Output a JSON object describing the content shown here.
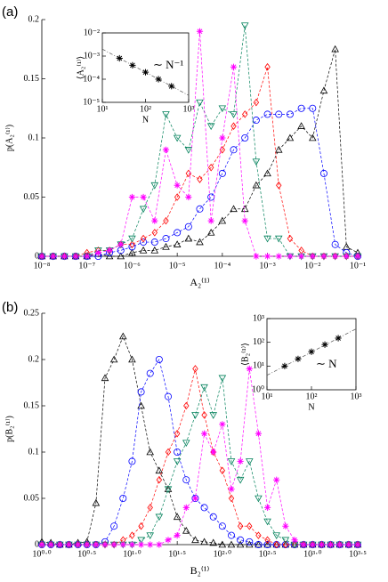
{
  "chart_data": [
    {
      "type": "line",
      "label": "(a)",
      "xlabel": "A₂⁽¹⁾",
      "ylabel": "p(A₂⁽¹⁾)",
      "xscale": "log",
      "xlim": [
        1e-08,
        0.1
      ],
      "ylim": [
        0,
        0.2
      ],
      "xticks": [
        {
          "value": 1e-08,
          "label": "10⁻⁸"
        },
        {
          "value": 1e-07,
          "label": "10⁻⁷"
        },
        {
          "value": 1e-06,
          "label": "10⁻⁶"
        },
        {
          "value": 1e-05,
          "label": "10⁻⁵"
        },
        {
          "value": 0.0001,
          "label": "10⁻⁴"
        },
        {
          "value": 0.001,
          "label": "10⁻³"
        },
        {
          "value": 0.01,
          "label": "10⁻²"
        },
        {
          "value": 0.1,
          "label": "10⁻¹"
        }
      ],
      "yticks": [
        0,
        0.05,
        0.1,
        0.15,
        0.2
      ],
      "x": [
        1e-08,
        1.778e-08,
        3.162e-08,
        5.623e-08,
        1e-07,
        1.778e-07,
        3.162e-07,
        5.623e-07,
        1e-06,
        1.778e-06,
        3.162e-06,
        5.623e-06,
        1e-05,
        1.778e-05,
        3.162e-05,
        5.623e-05,
        0.0001,
        0.0001778,
        0.0003162,
        0.0005623,
        0.001,
        0.001778,
        0.003162,
        0.005623,
        0.01,
        0.01778,
        0.03162,
        0.05623,
        0.1
      ],
      "series": [
        {
          "color": "#000000",
          "marker": "triangle-up",
          "values": [
            0,
            0,
            0,
            0,
            0,
            0.002,
            0,
            0,
            0.003,
            0.005,
            0.005,
            0.008,
            0.01,
            0.015,
            0.012,
            0.02,
            0.03,
            0.04,
            0.04,
            0.06,
            0.07,
            0.09,
            0.1,
            0.11,
            0.1,
            0.14,
            0.175,
            0.008,
            0.003
          ]
        },
        {
          "color": "#0000ff",
          "marker": "circle",
          "values": [
            0,
            0,
            0,
            0,
            0,
            0,
            0.003,
            0.005,
            0.008,
            0.012,
            0.012,
            0.015,
            0.02,
            0.025,
            0.04,
            0.05,
            0.07,
            0.09,
            0.1,
            0.115,
            0.12,
            0.12,
            0.12,
            0.125,
            0.125,
            0.07,
            0.01,
            0.003,
            0
          ]
        },
        {
          "color": "#ff0000",
          "marker": "diamond",
          "values": [
            0,
            0,
            0,
            0,
            0.003,
            0.005,
            0.005,
            0.01,
            0.01,
            0.015,
            0.02,
            0.03,
            0.05,
            0.07,
            0.065,
            0.075,
            0.09,
            0.11,
            0.12,
            0.13,
            0.16,
            0.06,
            0.015,
            0.005,
            0,
            0,
            0,
            0,
            0
          ]
        },
        {
          "color": "#00805a",
          "marker": "triangle-down",
          "values": [
            0,
            0,
            0,
            0,
            0,
            0.005,
            0.005,
            0.01,
            0.015,
            0.04,
            0.06,
            0.12,
            0.1,
            0.09,
            0.13,
            0.11,
            0.125,
            0.12,
            0.195,
            0.08,
            0.015,
            0.015,
            0,
            0,
            0,
            0,
            0,
            0,
            0
          ]
        },
        {
          "color": "#ff00ff",
          "marker": "asterisk",
          "values": [
            0,
            0,
            0,
            0,
            0,
            0.003,
            0.005,
            0.01,
            0.05,
            0.05,
            0.03,
            0.09,
            0.06,
            0.05,
            0.19,
            0.03,
            0.1,
            0.16,
            0.03,
            0,
            0,
            0,
            0,
            0,
            0,
            0,
            0,
            0,
            0
          ]
        }
      ]
    },
    {
      "type": "inset",
      "xlabel": "N",
      "ylabel": "⟨A₂⁽¹⁾⟩",
      "annotation": "∼ N⁻¹",
      "xscale": "log",
      "yscale": "log",
      "xlim": [
        10,
        1000
      ],
      "ylim": [
        1e-05,
        0.01
      ],
      "xticks": [
        {
          "value": 10,
          "label": "10¹"
        },
        {
          "value": 100,
          "label": "10²"
        },
        {
          "value": 1000,
          "label": "10³"
        }
      ],
      "yticks": [
        {
          "value": 1e-05,
          "label": "10⁻⁵"
        },
        {
          "value": 0.0001,
          "label": "10⁻⁴"
        },
        {
          "value": 0.001,
          "label": "10⁻³"
        },
        {
          "value": 0.01,
          "label": "10⁻²"
        }
      ],
      "x": [
        25,
        50,
        100,
        200,
        400
      ],
      "series": [
        {
          "color": "#000000",
          "marker": "asterisk",
          "values": [
            0.0008,
            0.0004,
            0.0002,
            0.0001,
            5e-05
          ]
        }
      ]
    },
    {
      "type": "line",
      "label": "(b)",
      "xlabel": "B₂⁽¹⁾",
      "ylabel": "p(B₂⁽¹⁾)",
      "xscale": "log",
      "xlim": [
        1,
        3162.28
      ],
      "ylim": [
        0,
        0.25
      ],
      "xticks": [
        {
          "value": 1,
          "label": "10⁰·⁰"
        },
        {
          "value": 3.1623,
          "label": "10⁰·⁵"
        },
        {
          "value": 10,
          "label": "10¹·⁰"
        },
        {
          "value": 31.623,
          "label": "10¹·⁵"
        },
        {
          "value": 100,
          "label": "10²·⁰"
        },
        {
          "value": 316.23,
          "label": "10²·⁵"
        },
        {
          "value": 1000,
          "label": "10³·⁰"
        },
        {
          "value": 3162.28,
          "label": "10³·⁵"
        }
      ],
      "yticks": [
        0,
        0.05,
        0.1,
        0.15,
        0.2,
        0.25
      ],
      "x": [
        1,
        1.259,
        1.585,
        1.995,
        2.512,
        3.162,
        3.981,
        5.012,
        6.31,
        7.943,
        10,
        12.59,
        15.85,
        19.95,
        25.12,
        31.62,
        39.81,
        50.12,
        63.1,
        79.43,
        100,
        125.9,
        158.5,
        199.5,
        251.2,
        316.2,
        398.1,
        501.2,
        631,
        794.3,
        1000,
        1259,
        1585,
        1995,
        2512,
        3162
      ],
      "series": [
        {
          "color": "#000000",
          "marker": "triangle-up",
          "values": [
            0.003,
            0.002,
            0,
            0,
            0.002,
            0.003,
            0.045,
            0.18,
            0.2,
            0.225,
            0.2,
            0.15,
            0.1,
            0.08,
            0.06,
            0.03,
            0.015,
            0.005,
            0.003,
            0.002,
            0,
            0,
            0,
            0,
            0,
            0,
            0,
            0,
            0,
            0,
            0,
            0,
            0,
            0,
            0,
            0
          ]
        },
        {
          "color": "#0000ff",
          "marker": "circle",
          "values": [
            0,
            0,
            0,
            0,
            0,
            0,
            0,
            0.003,
            0.02,
            0.05,
            0.09,
            0.165,
            0.185,
            0.2,
            0.16,
            0.1,
            0.07,
            0.05,
            0.04,
            0.03,
            0.02,
            0.01,
            0.005,
            0.003,
            0,
            0,
            0,
            0,
            0,
            0,
            0,
            0,
            0,
            0,
            0,
            0
          ]
        },
        {
          "color": "#ff0000",
          "marker": "diamond",
          "values": [
            0,
            0,
            0,
            0,
            0,
            0,
            0,
            0,
            0,
            0.005,
            0.01,
            0.02,
            0.04,
            0.07,
            0.1,
            0.12,
            0.15,
            0.19,
            0.14,
            0.1,
            0.08,
            0.05,
            0.02,
            0.02,
            0.01,
            0.005,
            0,
            0,
            0,
            0,
            0,
            0,
            0,
            0,
            0,
            0
          ]
        },
        {
          "color": "#00805a",
          "marker": "triangle-down",
          "values": [
            0,
            0,
            0,
            0,
            0,
            0,
            0,
            0,
            0,
            0,
            0,
            0.005,
            0.01,
            0.03,
            0.06,
            0.09,
            0.11,
            0.14,
            0.17,
            0.14,
            0.18,
            0.09,
            0.07,
            0.09,
            0.05,
            0.025,
            0.01,
            0.005,
            0,
            0,
            0,
            0,
            0,
            0,
            0,
            0
          ]
        },
        {
          "color": "#ff00ff",
          "marker": "asterisk",
          "values": [
            0,
            0,
            0,
            0,
            0,
            0,
            0,
            0,
            0,
            0,
            0,
            0,
            0,
            0,
            0.005,
            0.01,
            0.04,
            0.05,
            0.12,
            0.1,
            0.13,
            0.06,
            0.09,
            0.19,
            0.12,
            0.04,
            0.07,
            0.02,
            0.005,
            0,
            0,
            0,
            0,
            0,
            0,
            0
          ]
        }
      ]
    },
    {
      "type": "inset",
      "xlabel": "N",
      "ylabel": "⟨B₂⁽¹⁾⟩",
      "annotation": "∼ N",
      "xscale": "log",
      "yscale": "log",
      "xlim": [
        10,
        1000
      ],
      "ylim": [
        1,
        1000
      ],
      "xticks": [
        {
          "value": 10,
          "label": "10¹"
        },
        {
          "value": 100,
          "label": "10²"
        },
        {
          "value": 1000,
          "label": "10³"
        }
      ],
      "yticks": [
        {
          "value": 1,
          "label": "10⁰"
        },
        {
          "value": 10,
          "label": "10¹"
        },
        {
          "value": 100,
          "label": "10²"
        },
        {
          "value": 1000,
          "label": "10³"
        }
      ],
      "x": [
        25,
        50,
        100,
        200,
        400
      ],
      "series": [
        {
          "color": "#000000",
          "marker": "asterisk",
          "values": [
            10,
            20,
            40,
            80,
            150
          ]
        }
      ]
    }
  ]
}
